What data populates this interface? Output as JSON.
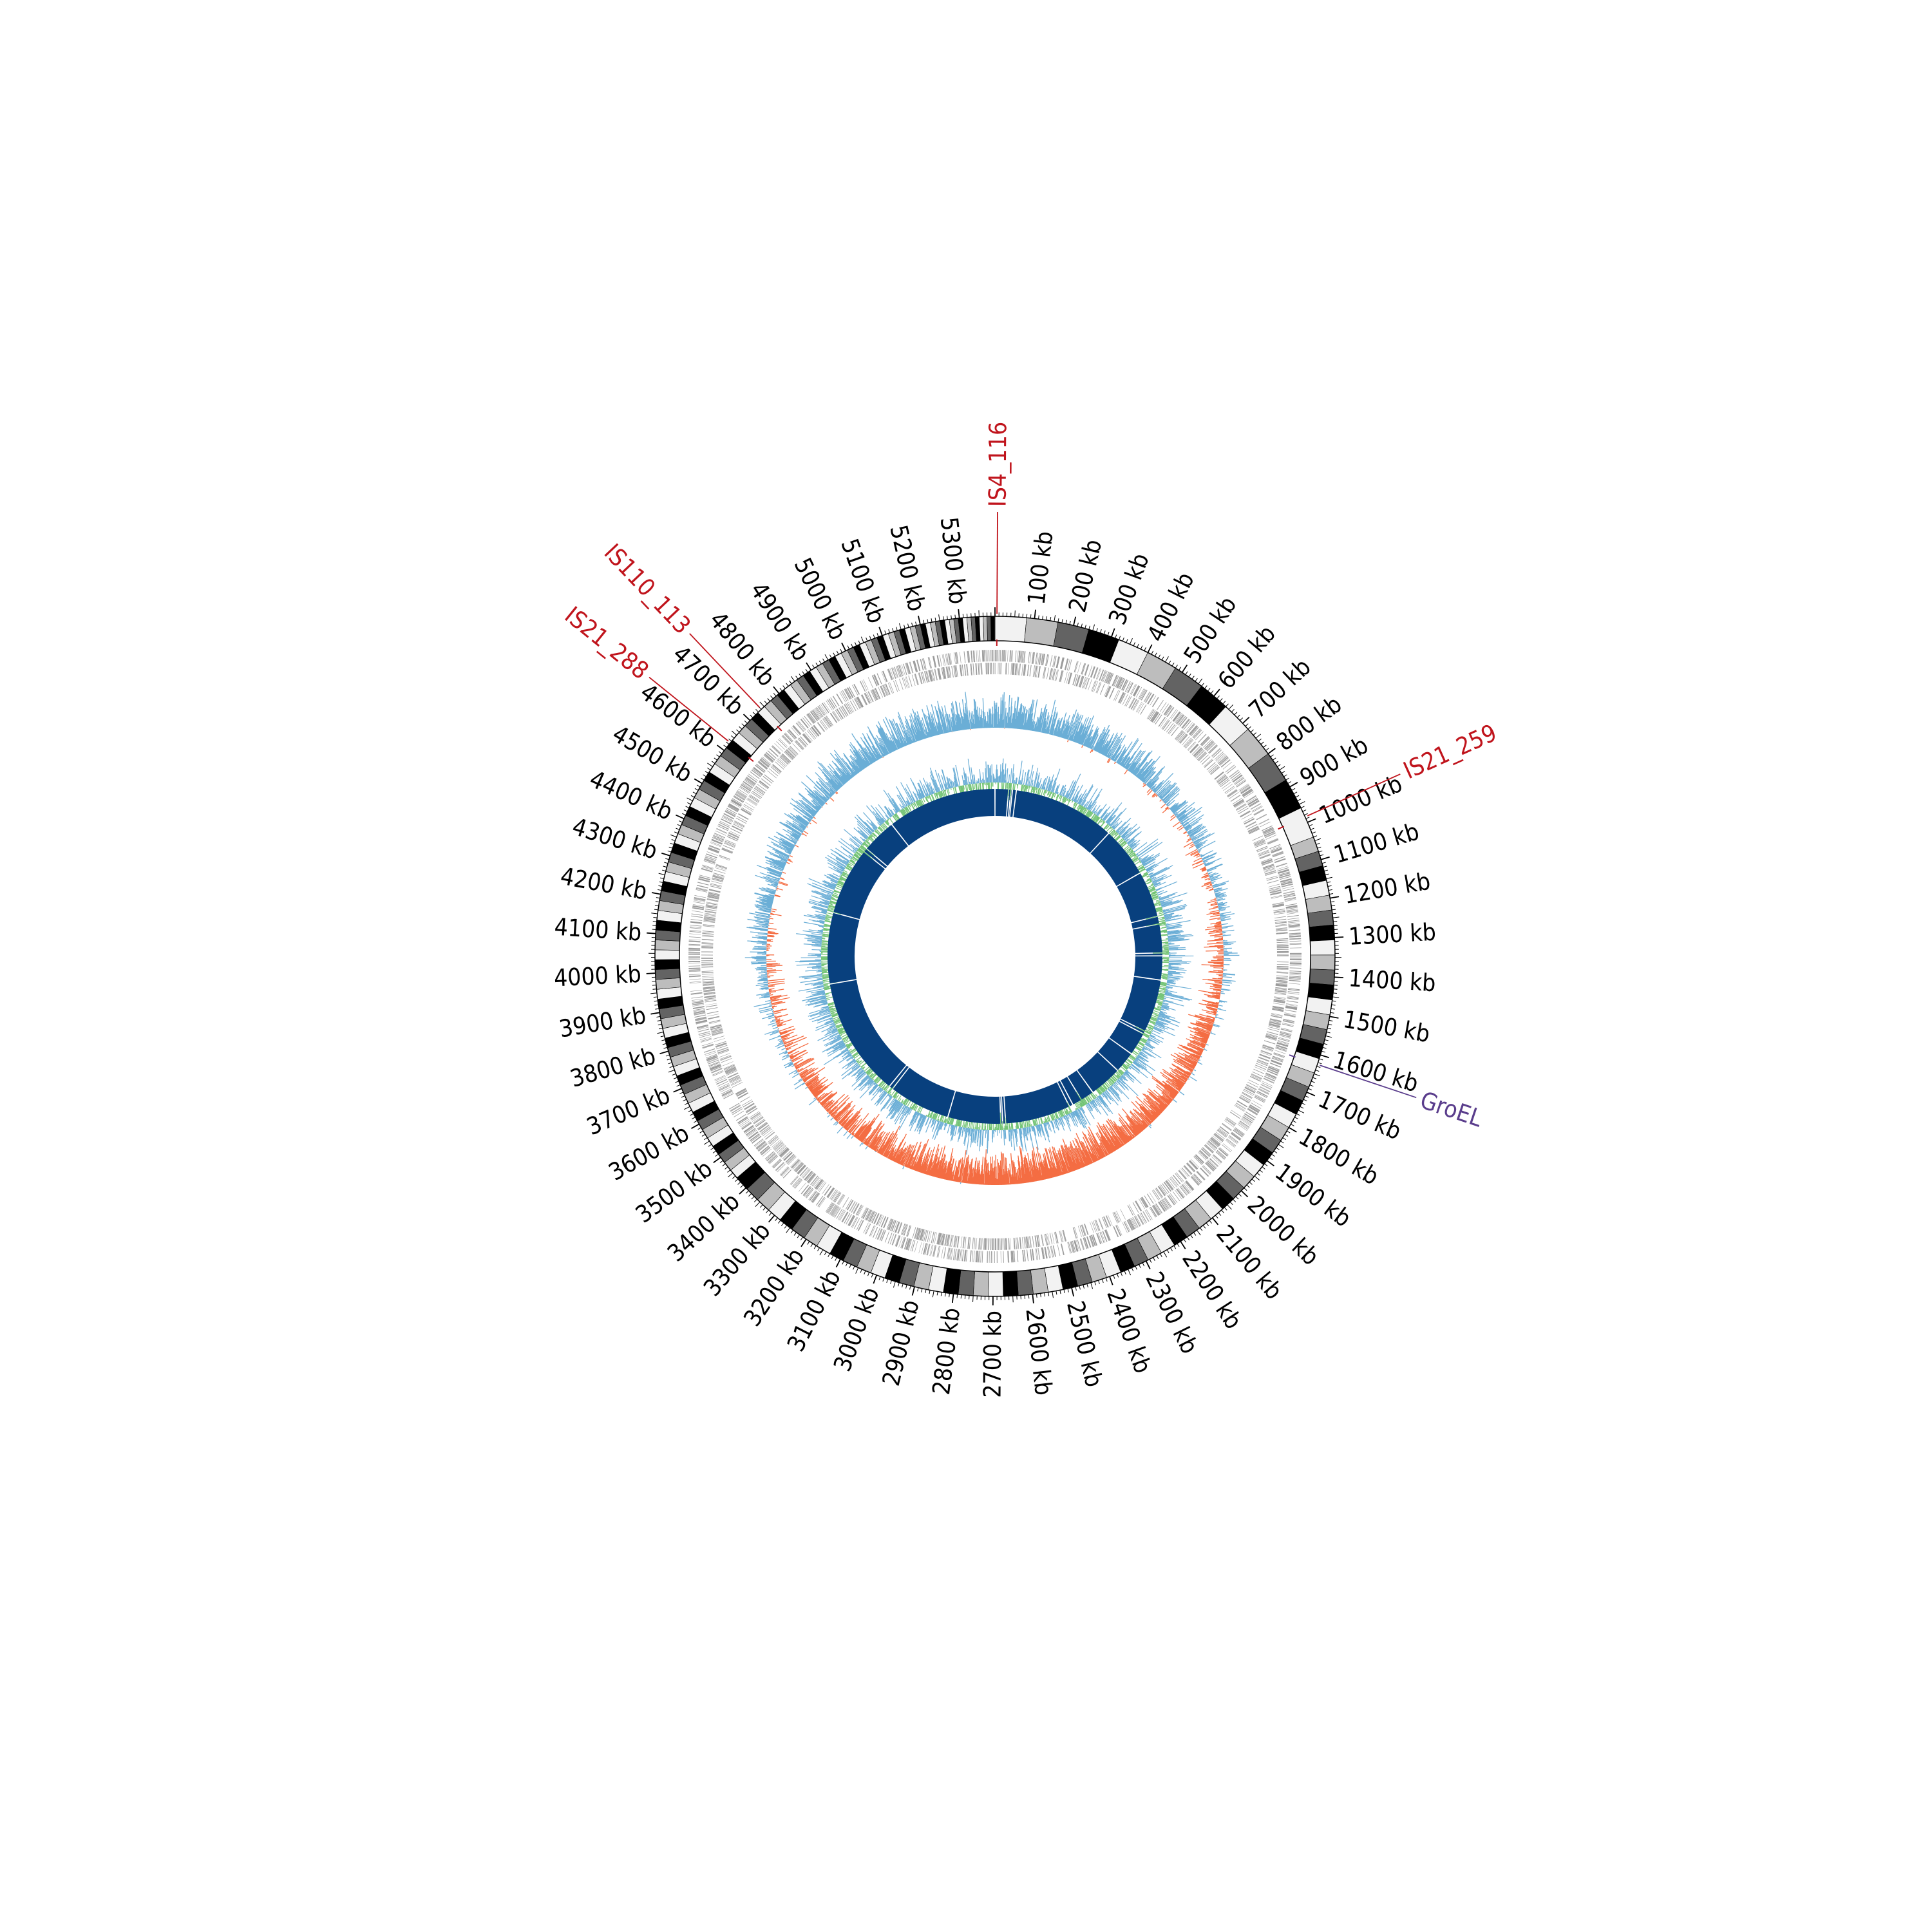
{
  "chart_data": {
    "type": "circular-genome",
    "genome_length_kb": 5390,
    "tick_labels": [
      {
        "kb": 100,
        "label": "100 kb"
      },
      {
        "kb": 200,
        "label": "200 kb"
      },
      {
        "kb": 300,
        "label": "300 kb"
      },
      {
        "kb": 400,
        "label": "400 kb"
      },
      {
        "kb": 500,
        "label": "500 kb"
      },
      {
        "kb": 600,
        "label": "600 kb"
      },
      {
        "kb": 700,
        "label": "700 kb"
      },
      {
        "kb": 800,
        "label": "800 kb"
      },
      {
        "kb": 900,
        "label": "900 kb"
      },
      {
        "kb": 1000,
        "label": "1000 kb"
      },
      {
        "kb": 1100,
        "label": "1100 kb"
      },
      {
        "kb": 1200,
        "label": "1200 kb"
      },
      {
        "kb": 1300,
        "label": "1300 kb"
      },
      {
        "kb": 1400,
        "label": "1400 kb"
      },
      {
        "kb": 1500,
        "label": "1500 kb"
      },
      {
        "kb": 1600,
        "label": "1600 kb"
      },
      {
        "kb": 1700,
        "label": "1700 kb"
      },
      {
        "kb": 1800,
        "label": "1800 kb"
      },
      {
        "kb": 1900,
        "label": "1900 kb"
      },
      {
        "kb": 2000,
        "label": "2000 kb"
      },
      {
        "kb": 2100,
        "label": "2100 kb"
      },
      {
        "kb": 2200,
        "label": "2200 kb"
      },
      {
        "kb": 2300,
        "label": "2300 kb"
      },
      {
        "kb": 2400,
        "label": "2400 kb"
      },
      {
        "kb": 2500,
        "label": "2500 kb"
      },
      {
        "kb": 2600,
        "label": "2600 kb"
      },
      {
        "kb": 2700,
        "label": "2700 kb"
      },
      {
        "kb": 2800,
        "label": "2800 kb"
      },
      {
        "kb": 2900,
        "label": "2900 kb"
      },
      {
        "kb": 3000,
        "label": "3000 kb"
      },
      {
        "kb": 3100,
        "label": "3100 kb"
      },
      {
        "kb": 3200,
        "label": "3200 kb"
      },
      {
        "kb": 3300,
        "label": "3300 kb"
      },
      {
        "kb": 3400,
        "label": "3400 kb"
      },
      {
        "kb": 3500,
        "label": "3500 kb"
      },
      {
        "kb": 3600,
        "label": "3600 kb"
      },
      {
        "kb": 3700,
        "label": "3700 kb"
      },
      {
        "kb": 3800,
        "label": "3800 kb"
      },
      {
        "kb": 3900,
        "label": "3900 kb"
      },
      {
        "kb": 4000,
        "label": "4000 kb"
      },
      {
        "kb": 4100,
        "label": "4100 kb"
      },
      {
        "kb": 4200,
        "label": "4200 kb"
      },
      {
        "kb": 4300,
        "label": "4300 kb"
      },
      {
        "kb": 4400,
        "label": "4400 kb"
      },
      {
        "kb": 4500,
        "label": "4500 kb"
      },
      {
        "kb": 4600,
        "label": "4600 kb"
      },
      {
        "kb": 4700,
        "label": "4700 kb"
      },
      {
        "kb": 4800,
        "label": "4800 kb"
      },
      {
        "kb": 4900,
        "label": "4900 kb"
      },
      {
        "kb": 5000,
        "label": "5000 kb"
      },
      {
        "kb": 5100,
        "label": "5100 kb"
      },
      {
        "kb": 5200,
        "label": "5200 kb"
      },
      {
        "kb": 5300,
        "label": "5300 kb"
      }
    ],
    "annotations": [
      {
        "label": "IS4_116",
        "kb": 5,
        "color": "#c0141c"
      },
      {
        "label": "IS21_259",
        "kb": 985,
        "color": "#c0141c"
      },
      {
        "label": "GroEL",
        "kb": 1625,
        "color": "#5a3d8c"
      },
      {
        "label": "IS21_288",
        "kb": 4625,
        "color": "#c0141c"
      },
      {
        "label": "IS110_113",
        "kb": 4740,
        "color": "#c0141c"
      }
    ],
    "tracks": [
      {
        "name": "ideogram",
        "style": "greyscale-bands"
      },
      {
        "name": "genes",
        "color": "#999999"
      },
      {
        "name": "gc-skew",
        "positive_color": "#6baed6",
        "negative_color": "#f46d43"
      },
      {
        "name": "gc-content",
        "colors": [
          "#74c476",
          "#6baed6"
        ]
      },
      {
        "name": "contigs",
        "color": "#08407e"
      }
    ],
    "colors": {
      "ideogram_grey_levels": [
        "#f2f2f2",
        "#bdbdbd",
        "#636363",
        "#000000"
      ],
      "gene_marks": "#999999",
      "skew_positive": "#6baed6",
      "skew_negative": "#f46d43",
      "gc_green": "#74c476",
      "gc_blue": "#6baed6",
      "contig_ring": "#08407e",
      "is_element": "#c0141c",
      "groel": "#5a3d8c"
    }
  }
}
